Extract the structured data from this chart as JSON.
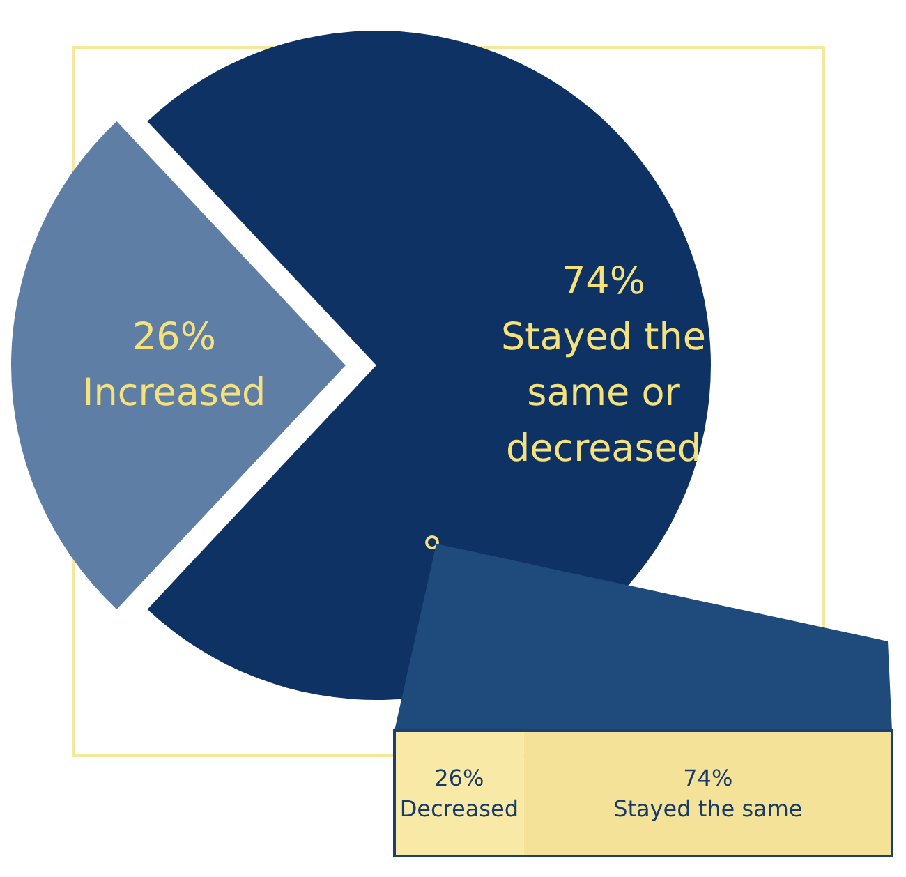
{
  "chart_data": [
    {
      "type": "pie",
      "categories": [
        "Increased",
        "Stayed the same or decreased"
      ],
      "values": [
        26,
        74
      ],
      "value_labels": [
        "26%",
        "74%"
      ],
      "colors": [
        "#5f7ea6",
        "#0d3263"
      ]
    },
    {
      "type": "bar",
      "orientation": "horizontal",
      "stacked": true,
      "categories": [
        null
      ],
      "series": [
        {
          "name": "Decreased",
          "color": "#f8eaa6",
          "values": [
            26
          ],
          "value_labels": [
            "26%"
          ]
        },
        {
          "name": "Stayed the same",
          "color": "#f3e297",
          "values": [
            74
          ],
          "value_labels": [
            "74%"
          ]
        }
      ]
    }
  ]
}
